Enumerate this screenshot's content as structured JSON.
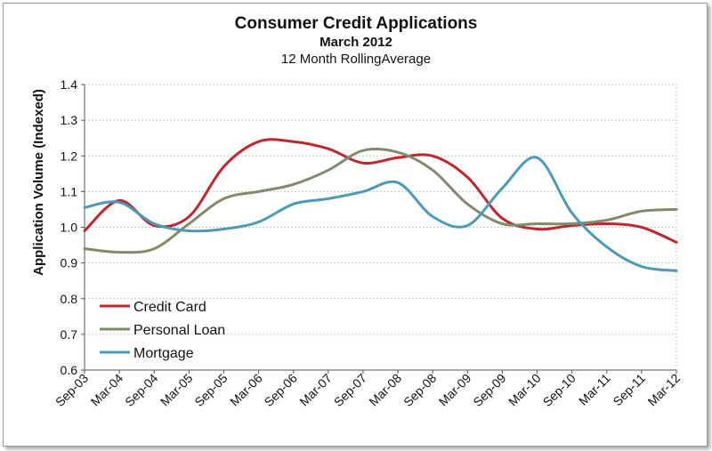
{
  "chart_data": {
    "type": "line",
    "title": "Consumer Credit Applications",
    "subtitle": "March 2012",
    "subtitle2": "12 Month RollingAverage",
    "xlabel": "",
    "ylabel": "Application Volume (Indexed)",
    "ylim": [
      0.6,
      1.4
    ],
    "yticks": [
      "0.6",
      "0.7",
      "0.8",
      "0.9",
      "1.0",
      "1.1",
      "1.2",
      "1.3",
      "1.4"
    ],
    "x": [
      "Sep-03",
      "Mar-04",
      "Sep-04",
      "Mar-05",
      "Sep-05",
      "Mar-06",
      "Sep-06",
      "Mar-07",
      "Sep-07",
      "Mar-08",
      "Sep-08",
      "Mar-09",
      "Sep-09",
      "Mar-10",
      "Sep-10",
      "Mar-11",
      "Sep-11",
      "Mar-12"
    ],
    "grid": "horizontal dotted",
    "legend_position": "bottom-left inside plot",
    "series": [
      {
        "name": "Credit Card",
        "color": "#c0272d",
        "values": [
          0.99,
          1.075,
          1.005,
          1.03,
          1.17,
          1.24,
          1.24,
          1.22,
          1.18,
          1.195,
          1.2,
          1.14,
          1.025,
          0.995,
          1.005,
          1.01,
          1.0,
          0.958
        ]
      },
      {
        "name": "Personal Loan",
        "color": "#7f8c6b",
        "values": [
          0.94,
          0.93,
          0.94,
          1.01,
          1.08,
          1.1,
          1.12,
          1.16,
          1.215,
          1.21,
          1.16,
          1.065,
          1.01,
          1.01,
          1.01,
          1.02,
          1.045,
          1.05
        ]
      },
      {
        "name": "Mortgage",
        "color": "#4a9ab8",
        "values": [
          1.055,
          1.07,
          1.01,
          0.99,
          0.995,
          1.015,
          1.065,
          1.08,
          1.1,
          1.125,
          1.03,
          1.005,
          1.11,
          1.195,
          1.04,
          0.945,
          0.89,
          0.878
        ]
      }
    ]
  }
}
